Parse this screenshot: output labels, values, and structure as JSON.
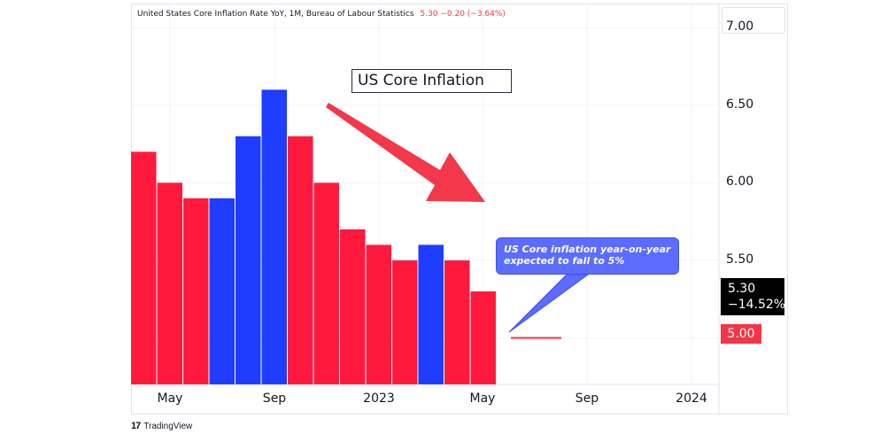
{
  "header": {
    "symbol_title": "United States Core Inflation Rate YoY, 1M, Bureau of Labour Statistics",
    "last_value_text": "5.30 −0.20 (−3.64%)"
  },
  "annotations": {
    "title": "US Core Inflation",
    "callout_line1": "US Core inflation year-on-year",
    "callout_line2": "expected to fall to 5%"
  },
  "price_scale": {
    "last_value": "5.30",
    "last_change": "−14.52%",
    "target_value": "5.00"
  },
  "branding": {
    "logo_mark": "17",
    "logo_text": "TradingView"
  },
  "colors": {
    "down": "#ff1a3d",
    "up": "#1f3dff",
    "arrow": "#f2384a",
    "callout": "#5b6cff"
  },
  "chart_data": {
    "type": "bar",
    "title": "United States Core Inflation Rate YoY",
    "categories": [
      "2022-04",
      "2022-05",
      "2022-06",
      "2022-07",
      "2022-08",
      "2022-09",
      "2022-10",
      "2022-11",
      "2022-12",
      "2023-01",
      "2023-02",
      "2023-03",
      "2023-04",
      "2023-05"
    ],
    "values": [
      6.2,
      6.0,
      5.9,
      5.9,
      6.3,
      6.6,
      6.3,
      6.0,
      5.7,
      5.6,
      5.5,
      5.6,
      5.5,
      5.3
    ],
    "series_colors": [
      "down",
      "down",
      "down",
      "up",
      "up",
      "up",
      "down",
      "down",
      "down",
      "down",
      "down",
      "up",
      "down",
      "down"
    ],
    "ylim": [
      4.7,
      7.15
    ],
    "yticks": [
      "7.00",
      "6.50",
      "6.00",
      "5.50"
    ],
    "xticks": [
      "May",
      "Sep",
      "2023",
      "May",
      "Sep",
      "2024"
    ],
    "projection": {
      "target": 5.0,
      "label": "expected to fall to 5%"
    }
  }
}
